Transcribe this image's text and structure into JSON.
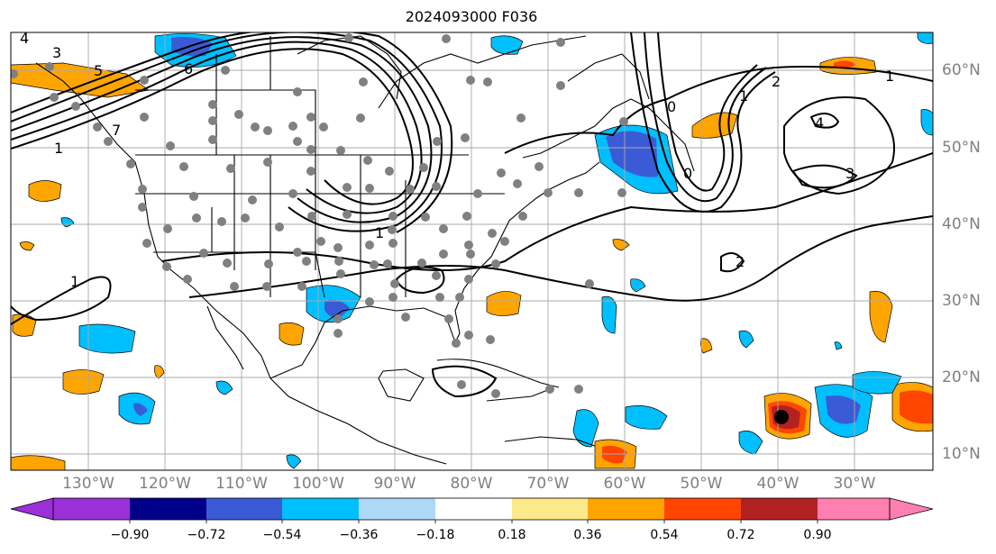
{
  "title": "2024093000 F036",
  "lon_labels": [
    "130°W",
    "120°W",
    "110°W",
    "100°W",
    "90°W",
    "80°W",
    "70°W",
    "60°W",
    "50°W",
    "40°W",
    "30°W"
  ],
  "lat_labels": [
    "60°N",
    "50°N",
    "40°N",
    "30°N",
    "20°N",
    "10°N"
  ],
  "colorbar": {
    "ticks": [
      "−0.90",
      "−0.72",
      "−0.54",
      "−0.36",
      "−0.18",
      "0.18",
      "0.36",
      "0.54",
      "0.72",
      "0.90"
    ],
    "colors": [
      "#9b30d9",
      "#00008b",
      "#3b5bd6",
      "#00bfff",
      "#add8f6",
      "#ffffff",
      "#fce98a",
      "#ffa500",
      "#ff4500",
      "#b22222",
      "#ff80b0"
    ]
  },
  "contour_labels": [
    "4",
    "3",
    "5",
    "6",
    "1",
    "7",
    "1",
    "1",
    "0",
    "2",
    "1",
    "4",
    "3",
    "2",
    "0",
    "1"
  ]
}
